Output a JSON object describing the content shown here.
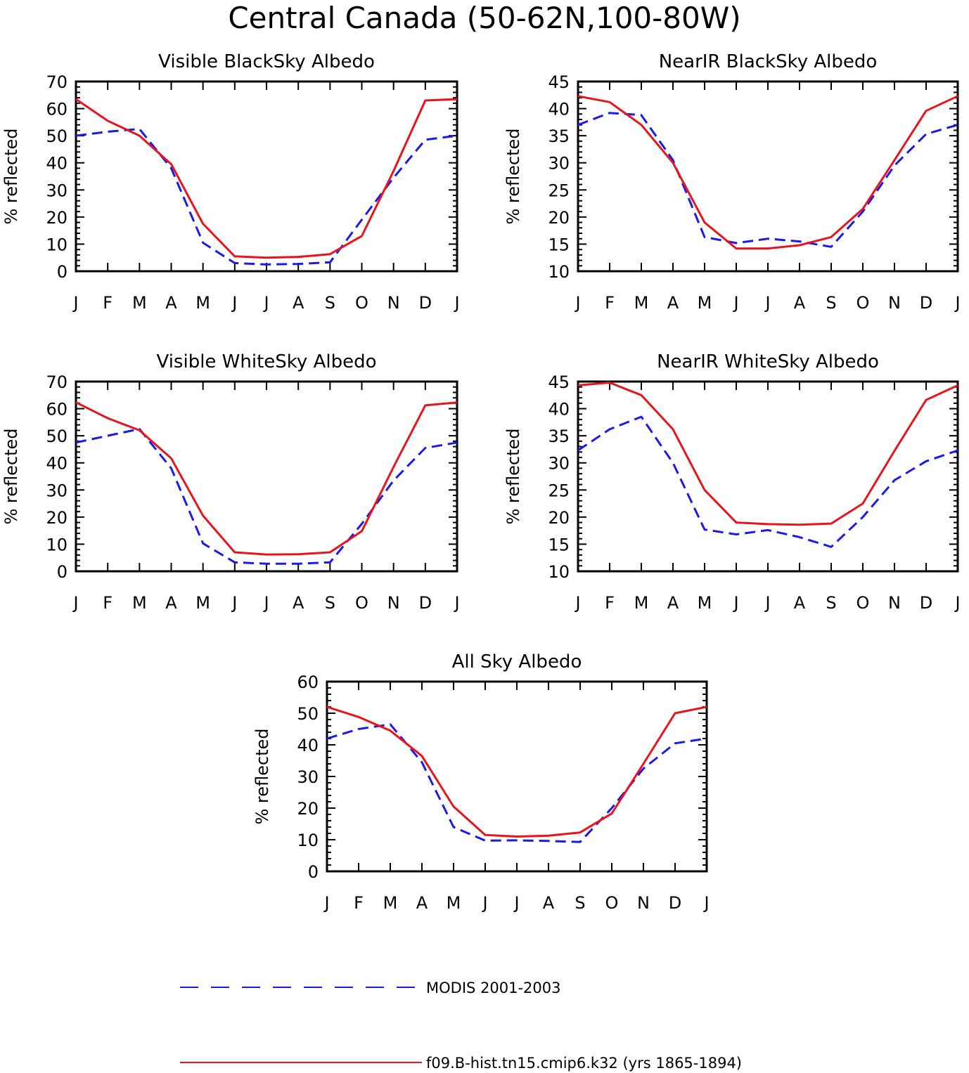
{
  "title": "Central Canada (50-62N,100-80W)",
  "months": [
    "J",
    "F",
    "M",
    "A",
    "M",
    "J",
    "J",
    "A",
    "S",
    "O",
    "N",
    "D",
    "J"
  ],
  "colors": {
    "modis": "#1a1aee",
    "model": "#e8141b",
    "axes": "#000000"
  },
  "legend": [
    {
      "label": "MODIS 2001-2003",
      "style": "dashed",
      "color": "#1a1aee"
    },
    {
      "label": "f09.B-hist.tn15.cmip6.k32 (yrs 1865-1894)",
      "style": "solid",
      "color": "#e8141b"
    }
  ],
  "chart_data": [
    {
      "type": "line",
      "title": "Visible BlackSky Albedo",
      "ylabel": "% reflected",
      "ylim": [
        0,
        70
      ],
      "yticks": [
        0,
        10,
        20,
        30,
        40,
        50,
        60,
        70
      ],
      "x": [
        "J",
        "F",
        "M",
        "A",
        "M",
        "J",
        "J",
        "A",
        "S",
        "O",
        "N",
        "D",
        "J"
      ],
      "series": [
        {
          "name": "MODIS 2001-2003",
          "values": [
            50,
            51.5,
            52.5,
            38,
            10.5,
            3,
            2.5,
            2.7,
            3.3,
            19,
            34.5,
            48.5,
            50
          ]
        },
        {
          "name": "f09.B-hist.tn15.cmip6.k32 (yrs 1865-1894)",
          "values": [
            63.5,
            55.5,
            50,
            39.5,
            17.5,
            5.5,
            5,
            5.3,
            6.3,
            13,
            37,
            63,
            63.5
          ]
        }
      ]
    },
    {
      "type": "line",
      "title": "NearIR BlackSky Albedo",
      "ylabel": "% reflected",
      "ylim": [
        10,
        45
      ],
      "yticks": [
        10,
        15,
        20,
        25,
        30,
        35,
        40,
        45
      ],
      "x": [
        "J",
        "F",
        "M",
        "A",
        "M",
        "J",
        "J",
        "A",
        "S",
        "O",
        "N",
        "D",
        "J"
      ],
      "series": [
        {
          "name": "MODIS 2001-2003",
          "values": [
            37,
            39.2,
            38.8,
            30.5,
            16.3,
            15.2,
            16,
            15.5,
            14.5,
            21,
            29.5,
            35.3,
            37
          ]
        },
        {
          "name": "f09.B-hist.tn15.cmip6.k32 (yrs 1865-1894)",
          "values": [
            42.3,
            41.2,
            37,
            30,
            19,
            14.2,
            14.2,
            14.8,
            16.3,
            21.5,
            30.5,
            39.6,
            42.3
          ]
        }
      ]
    },
    {
      "type": "line",
      "title": "Visible WhiteSky Albedo",
      "ylabel": "% reflected",
      "ylim": [
        0,
        70
      ],
      "yticks": [
        0,
        10,
        20,
        30,
        40,
        50,
        60,
        70
      ],
      "x": [
        "J",
        "F",
        "M",
        "A",
        "M",
        "J",
        "J",
        "A",
        "S",
        "O",
        "N",
        "D",
        "J"
      ],
      "series": [
        {
          "name": "MODIS 2001-2003",
          "values": [
            47.5,
            50,
            52.5,
            38,
            10.3,
            3.3,
            2.8,
            2.8,
            3.3,
            17.5,
            33.5,
            45.5,
            47.5
          ]
        },
        {
          "name": "f09.B-hist.tn15.cmip6.k32 (yrs 1865-1894)",
          "values": [
            62.3,
            56.5,
            52,
            41.7,
            20.5,
            7,
            6.2,
            6.3,
            7,
            14.8,
            38.5,
            61.2,
            62.3
          ]
        }
      ]
    },
    {
      "type": "line",
      "title": "NearIR WhiteSky Albedo",
      "ylabel": "% reflected",
      "ylim": [
        10,
        45
      ],
      "yticks": [
        10,
        15,
        20,
        25,
        30,
        35,
        40,
        45
      ],
      "x": [
        "J",
        "F",
        "M",
        "A",
        "M",
        "J",
        "J",
        "A",
        "S",
        "O",
        "N",
        "D",
        "J"
      ],
      "series": [
        {
          "name": "MODIS 2001-2003",
          "values": [
            32.3,
            36.2,
            38.5,
            30,
            17.7,
            16.8,
            17.6,
            16.3,
            14.5,
            20,
            26.8,
            30.3,
            32.3
          ]
        },
        {
          "name": "f09.B-hist.tn15.cmip6.k32 (yrs 1865-1894)",
          "values": [
            44.3,
            44.8,
            42.5,
            36.2,
            25,
            19,
            18.7,
            18.6,
            18.8,
            22.5,
            32.2,
            41.6,
            44.3
          ]
        }
      ]
    },
    {
      "type": "line",
      "title": "All Sky Albedo",
      "ylabel": "% reflected",
      "ylim": [
        0,
        60
      ],
      "yticks": [
        0,
        10,
        20,
        30,
        40,
        50,
        60
      ],
      "x": [
        "J",
        "F",
        "M",
        "A",
        "M",
        "J",
        "J",
        "A",
        "S",
        "O",
        "N",
        "D",
        "J"
      ],
      "series": [
        {
          "name": "MODIS 2001-2003",
          "values": [
            42,
            45,
            46.5,
            34.5,
            14,
            9.7,
            9.8,
            9.6,
            9.3,
            20,
            32.5,
            40.5,
            42
          ]
        },
        {
          "name": "f09.B-hist.tn15.cmip6.k32 (yrs 1865-1894)",
          "values": [
            52,
            48.8,
            44.5,
            36.5,
            20.5,
            11.5,
            11,
            11.3,
            12.3,
            18.3,
            34,
            50,
            52
          ]
        }
      ]
    }
  ]
}
